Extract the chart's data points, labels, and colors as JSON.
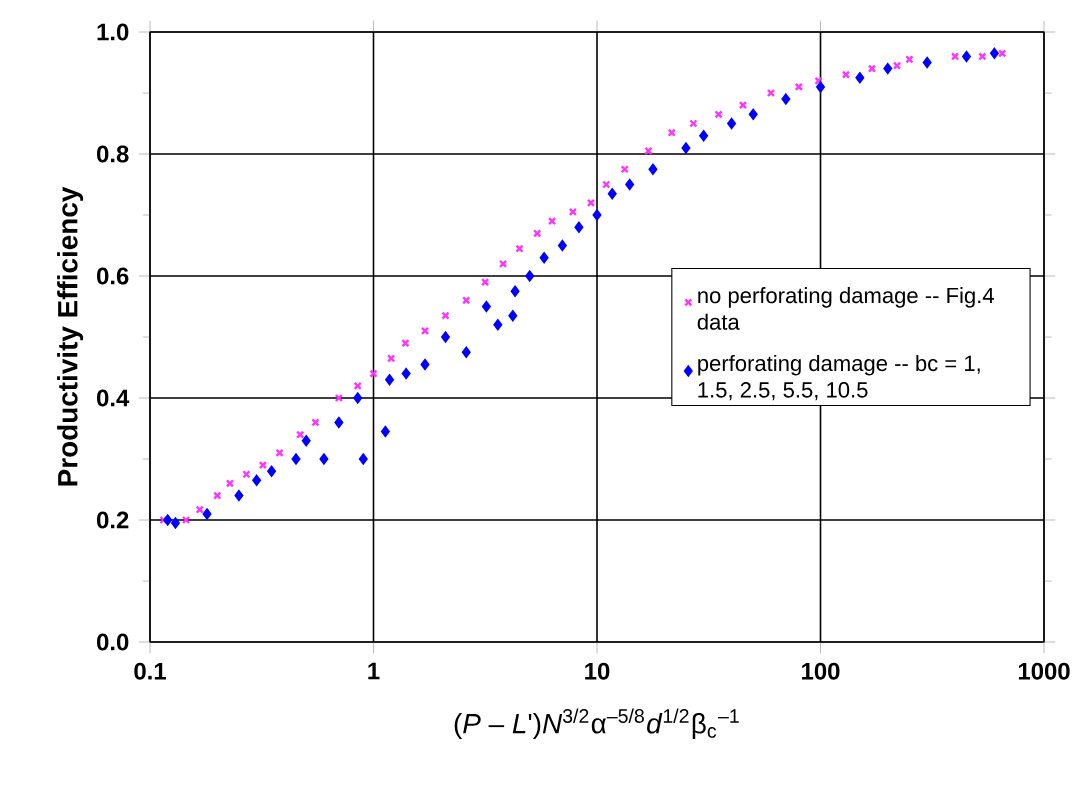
{
  "chart_data": {
    "type": "scatter",
    "xlabel": "(*P* – *L*')*N*$^{3/2}$α$^{–5/8}$*d*$^{1/2}$β$_{c}$$^{–1}$",
    "ylabel": "Productivity Efficiency",
    "log": "x",
    "xlim": [
      0.1,
      1000
    ],
    "xticks": [
      0.1,
      1,
      10,
      100,
      1000
    ],
    "ylim": [
      0,
      1
    ],
    "yticks": [
      {
        "value": 0,
        "label": "0.0"
      },
      {
        "value": 0.2,
        "label": "0.2"
      },
      {
        "value": 0.4,
        "label": "0.4"
      },
      {
        "value": 0.6,
        "label": "0.6"
      },
      {
        "value": 0.8,
        "label": "0.8"
      },
      {
        "value": 1,
        "label": "1.0"
      }
    ],
    "grid": true,
    "legend": "right",
    "series": [
      {
        "name": "no perforating damage -- Fig.4 data",
        "color": "#ff33ff",
        "marker": "cross",
        "x": [
          0.115,
          0.145,
          0.167,
          0.2,
          0.228,
          0.27,
          0.32,
          0.38,
          0.47,
          0.55,
          0.7,
          0.85,
          1.0,
          1.2,
          1.39,
          1.7,
          2.1,
          2.6,
          3.16,
          3.8,
          4.5,
          5.4,
          6.3,
          7.8,
          9.4,
          11,
          13.3,
          17,
          21.6,
          27,
          35,
          45,
          60,
          80,
          98,
          130,
          170,
          220,
          250,
          400,
          530,
          650
        ],
        "values": [
          0.2,
          0.2,
          0.217,
          0.24,
          0.26,
          0.275,
          0.29,
          0.31,
          0.34,
          0.36,
          0.4,
          0.42,
          0.44,
          0.465,
          0.49,
          0.51,
          0.535,
          0.56,
          0.59,
          0.62,
          0.645,
          0.67,
          0.69,
          0.705,
          0.72,
          0.75,
          0.775,
          0.805,
          0.835,
          0.85,
          0.865,
          0.88,
          0.9,
          0.91,
          0.92,
          0.93,
          0.94,
          0.945,
          0.955,
          0.96,
          0.96,
          0.965
        ]
      },
      {
        "name": "perforating damage -- bc = 1, 1.5, 2.5, 5.5, 10.5",
        "color": "#0000ff",
        "marker": "diamond",
        "x": [
          0.12,
          0.13,
          0.18,
          0.25,
          0.3,
          0.35,
          0.45,
          0.5,
          0.6,
          0.7,
          0.85,
          0.9,
          1.13,
          1.18,
          1.4,
          1.7,
          2.1,
          2.6,
          3.2,
          3.6,
          4.2,
          4.3,
          5.0,
          5.8,
          7.0,
          8.3,
          10,
          11.7,
          14,
          17.8,
          25,
          30,
          40,
          50,
          70,
          100,
          150,
          200,
          300,
          450,
          600
        ],
        "values": [
          0.2,
          0.195,
          0.21,
          0.24,
          0.265,
          0.28,
          0.3,
          0.33,
          0.3,
          0.36,
          0.4,
          0.3,
          0.345,
          0.43,
          0.44,
          0.455,
          0.5,
          0.475,
          0.55,
          0.52,
          0.535,
          0.575,
          0.6,
          0.63,
          0.65,
          0.68,
          0.7,
          0.735,
          0.75,
          0.775,
          0.81,
          0.83,
          0.85,
          0.865,
          0.89,
          0.91,
          0.925,
          0.94,
          0.95,
          0.96,
          0.965
        ]
      }
    ]
  }
}
